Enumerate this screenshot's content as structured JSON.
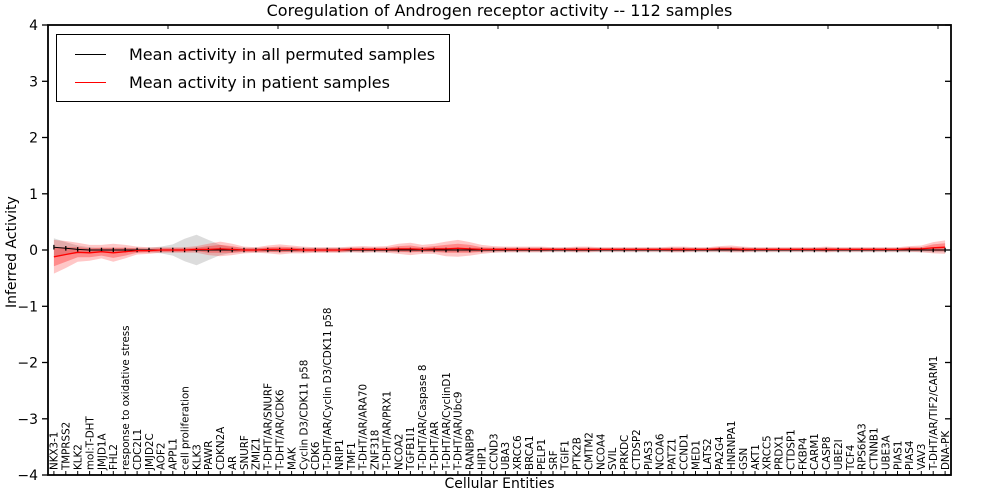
{
  "chart_data": {
    "type": "line",
    "title": "Coregulation of Androgen receptor activity -- 112 samples",
    "xlabel": "Cellular Entities",
    "ylabel": "Inferred Activity",
    "ylim": [
      -4,
      4
    ],
    "yticks": [
      -4,
      -3,
      -2,
      -1,
      0,
      1,
      2,
      3,
      4
    ],
    "grid": false,
    "legend_position": "upper left",
    "categories": [
      "NKX3-1",
      "TMPRSS2",
      "KLK2",
      "mol:T-DHT",
      "JMJD1A",
      "FHL2",
      "response to oxidative stress",
      "CDC2L1",
      "JMJD2C",
      "AOF2",
      "APPL1",
      "cell proliferation",
      "KLK3",
      "PAWR",
      "CDKN2A",
      "AR",
      "SNURF",
      "ZMIZ1",
      "T-DHT/AR/SNURF",
      "T-DHT/AR/CDK6",
      "MAK",
      "Cyclin D3/CDK11 p58",
      "CDK6",
      "T-DHT/AR/Cyclin D3/CDK11 p58",
      "NRIP1",
      "TMF1",
      "T-DHT/AR/ARA70",
      "ZNF318",
      "T-DHT/AR/PRX1",
      "NCOA2",
      "TGFB1I1",
      "T-DHT/AR/Caspase 8",
      "T-DHT/AR",
      "T-DHT/AR/CyclinD1",
      "T-DHT/AR/Ubc9",
      "RANBP9",
      "HIP1",
      "CCND3",
      "UBA3",
      "XRCC6",
      "BRCA1",
      "PELP1",
      "SRF",
      "TGIF1",
      "PTK2B",
      "CMTM2",
      "NCOA4",
      "SVIL",
      "PRKDC",
      "CTDSP2",
      "PIAS3",
      "NCOA6",
      "PATZ1",
      "CCND1",
      "MED1",
      "LATS2",
      "PA2G4",
      "HNRNPA1",
      "GSN",
      "AKT1",
      "XRCC5",
      "PRDX1",
      "CTDSP1",
      "FKBP4",
      "CARM1",
      "CASP8",
      "UBE2I",
      "TCF4",
      "RPS6KA3",
      "CTNNB1",
      "UBE3A",
      "PIAS1",
      "PIAS4",
      "VAV3",
      "T-DHT/AR/TIF2/CARM1",
      "DNA-PK"
    ],
    "series": [
      {
        "name": "Mean activity in all permuted samples",
        "color": "#000000",
        "values": [
          0.05,
          0.03,
          0.01,
          0,
          0,
          0,
          0,
          0,
          0,
          0,
          0,
          0,
          0,
          0,
          0,
          0,
          0,
          0,
          0,
          0,
          0,
          0,
          0,
          0,
          0,
          0,
          0,
          0,
          0,
          0,
          0,
          0,
          0,
          0,
          0,
          0,
          0,
          0,
          0,
          0,
          0,
          0,
          0,
          0,
          0,
          0,
          0,
          0,
          0,
          0,
          0,
          0,
          0,
          0,
          0,
          0,
          0,
          0,
          0,
          0,
          0,
          0,
          0,
          0,
          0,
          0,
          0,
          0,
          0,
          0,
          0,
          0,
          0,
          0,
          0,
          0
        ]
      },
      {
        "name": "Mean activity in patient samples",
        "color": "#ff0000",
        "values": [
          -0.12,
          -0.08,
          -0.04,
          -0.05,
          -0.03,
          -0.05,
          -0.03,
          -0.01,
          -0.01,
          0,
          0,
          0,
          0.01,
          0.01,
          0.02,
          0.01,
          0,
          0,
          0.01,
          0.01,
          0.01,
          0,
          0,
          0,
          0,
          0.01,
          0.01,
          0.01,
          0.01,
          0.02,
          0.02,
          0.01,
          0.02,
          0.02,
          0.03,
          0.02,
          0.01,
          0.01,
          0.01,
          0.01,
          0.01,
          0.01,
          0.01,
          0.01,
          0.01,
          0.01,
          0.01,
          0.01,
          0.01,
          0.01,
          0.01,
          0.01,
          0.01,
          0.01,
          0.01,
          0.01,
          0.02,
          0.02,
          0.01,
          0.01,
          0.01,
          0.01,
          0.01,
          0.01,
          0.01,
          0.01,
          0.01,
          0.01,
          0.01,
          0.01,
          0.01,
          0.01,
          0.02,
          0.02,
          0.04,
          0.05
        ]
      }
    ],
    "bands": [
      {
        "name": "permuted-samples-range",
        "color": "#808080",
        "opacity": 0.28,
        "center_series": 0,
        "half_widths": [
          0.16,
          0.11,
          0.07,
          0.05,
          0.04,
          0.04,
          0.04,
          0.04,
          0.04,
          0.06,
          0.1,
          0.2,
          0.27,
          0.18,
          0.09,
          0.05,
          0.04,
          0.04,
          0.04,
          0.04,
          0.04,
          0.04,
          0.04,
          0.04,
          0.04,
          0.04,
          0.04,
          0.04,
          0.04,
          0.04,
          0.04,
          0.04,
          0.04,
          0.04,
          0.04,
          0.04,
          0.04,
          0.04,
          0.04,
          0.04,
          0.04,
          0.04,
          0.04,
          0.04,
          0.04,
          0.04,
          0.04,
          0.04,
          0.04,
          0.04,
          0.04,
          0.04,
          0.04,
          0.04,
          0.04,
          0.04,
          0.04,
          0.04,
          0.04,
          0.04,
          0.04,
          0.04,
          0.04,
          0.04,
          0.04,
          0.04,
          0.04,
          0.04,
          0.04,
          0.04,
          0.04,
          0.04,
          0.04,
          0.04,
          0.04,
          0.04
        ]
      },
      {
        "name": "patient-samples-range-outer",
        "color": "#ff0000",
        "opacity": 0.22,
        "center_series": 1,
        "half_widths": [
          0.3,
          0.24,
          0.17,
          0.14,
          0.12,
          0.16,
          0.12,
          0.07,
          0.06,
          0.05,
          0.05,
          0.05,
          0.06,
          0.1,
          0.13,
          0.1,
          0.06,
          0.05,
          0.07,
          0.09,
          0.07,
          0.06,
          0.05,
          0.05,
          0.05,
          0.05,
          0.06,
          0.05,
          0.06,
          0.09,
          0.11,
          0.08,
          0.09,
          0.13,
          0.15,
          0.12,
          0.08,
          0.06,
          0.05,
          0.05,
          0.05,
          0.05,
          0.04,
          0.04,
          0.05,
          0.05,
          0.04,
          0.04,
          0.04,
          0.04,
          0.04,
          0.04,
          0.05,
          0.05,
          0.04,
          0.04,
          0.05,
          0.06,
          0.05,
          0.04,
          0.04,
          0.04,
          0.04,
          0.04,
          0.04,
          0.05,
          0.04,
          0.04,
          0.04,
          0.04,
          0.04,
          0.04,
          0.05,
          0.06,
          0.1,
          0.12
        ]
      },
      {
        "name": "patient-samples-range-inner",
        "color": "#ff0000",
        "opacity": 0.3,
        "center_series": 1,
        "half_widths": [
          0.17,
          0.13,
          0.09,
          0.08,
          0.07,
          0.09,
          0.07,
          0.04,
          0.03,
          0.03,
          0.03,
          0.03,
          0.03,
          0.06,
          0.07,
          0.06,
          0.03,
          0.03,
          0.04,
          0.05,
          0.04,
          0.03,
          0.03,
          0.03,
          0.03,
          0.03,
          0.03,
          0.03,
          0.03,
          0.05,
          0.06,
          0.04,
          0.05,
          0.07,
          0.08,
          0.07,
          0.04,
          0.03,
          0.03,
          0.03,
          0.03,
          0.03,
          0.02,
          0.02,
          0.03,
          0.03,
          0.02,
          0.02,
          0.02,
          0.02,
          0.02,
          0.02,
          0.03,
          0.03,
          0.02,
          0.02,
          0.03,
          0.03,
          0.03,
          0.02,
          0.02,
          0.02,
          0.02,
          0.02,
          0.02,
          0.03,
          0.02,
          0.02,
          0.02,
          0.02,
          0.02,
          0.02,
          0.03,
          0.03,
          0.06,
          0.07
        ]
      }
    ]
  }
}
